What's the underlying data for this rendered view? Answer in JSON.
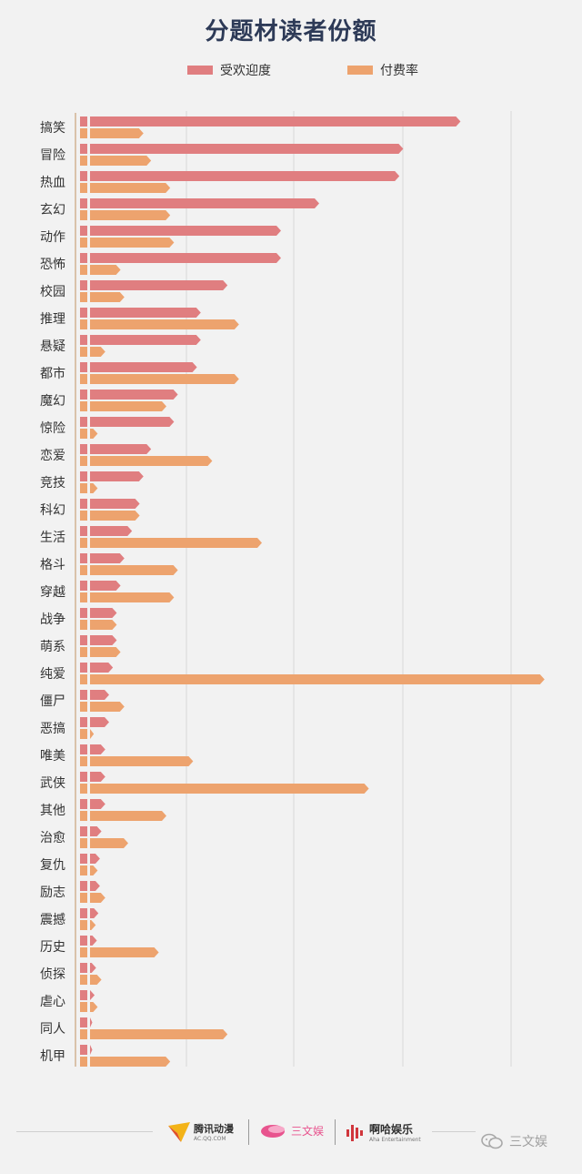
{
  "chart_data": {
    "type": "bar",
    "orientation": "horizontal",
    "title": "分题材读者份额",
    "categories": [
      "搞笑",
      "冒险",
      "热血",
      "玄幻",
      "动作",
      "恐怖",
      "校园",
      "推理",
      "悬疑",
      "都市",
      "魔幻",
      "惊险",
      "恋爱",
      "竞技",
      "科幻",
      "生活",
      "格斗",
      "穿越",
      "战争",
      "萌系",
      "纯爱",
      "僵尸",
      "恶搞",
      "唯美",
      "武侠",
      "其他",
      "治愈",
      "复仇",
      "励志",
      "震撼",
      "历史",
      "侦探",
      "虐心",
      "同人",
      "机甲"
    ],
    "series": [
      {
        "name": "受欢迎度",
        "color": "#e07e80",
        "values": [
          97,
          82,
          81,
          60,
          50,
          50,
          36,
          29,
          29,
          28,
          23,
          22,
          16,
          14,
          13,
          11,
          9,
          8,
          7,
          7,
          6,
          5,
          5,
          4,
          4,
          4,
          3,
          2.6,
          2.6,
          2.2,
          1.8,
          1.6,
          1.2,
          0.6,
          0.6
        ]
      },
      {
        "name": "付费率",
        "color": "#eda36e",
        "values": [
          14,
          16,
          21,
          21,
          22,
          8,
          9,
          39,
          4,
          39,
          20,
          2,
          32,
          2,
          13,
          45,
          23,
          22,
          7,
          8,
          119,
          9,
          1,
          27,
          73,
          20,
          10,
          2,
          4,
          1.5,
          18,
          3,
          2,
          36,
          21
        ]
      }
    ],
    "grid": true,
    "legend_position": "top"
  },
  "footer": {
    "logo_tencent": "腾讯动漫",
    "logo_tencent_sub": "AC.QQ.COM",
    "logo_sanwenyu": "三文娱",
    "logo_aha": "啊哈娱乐",
    "logo_aha_sub": "Aha Entertainment",
    "wechat_account": "三文娱"
  },
  "colors": {
    "title": "#2d3a57",
    "popularity": "#e07e80",
    "pay_rate": "#eda36e",
    "grid": "#d8d8d8",
    "background": "#f2f2f2"
  }
}
